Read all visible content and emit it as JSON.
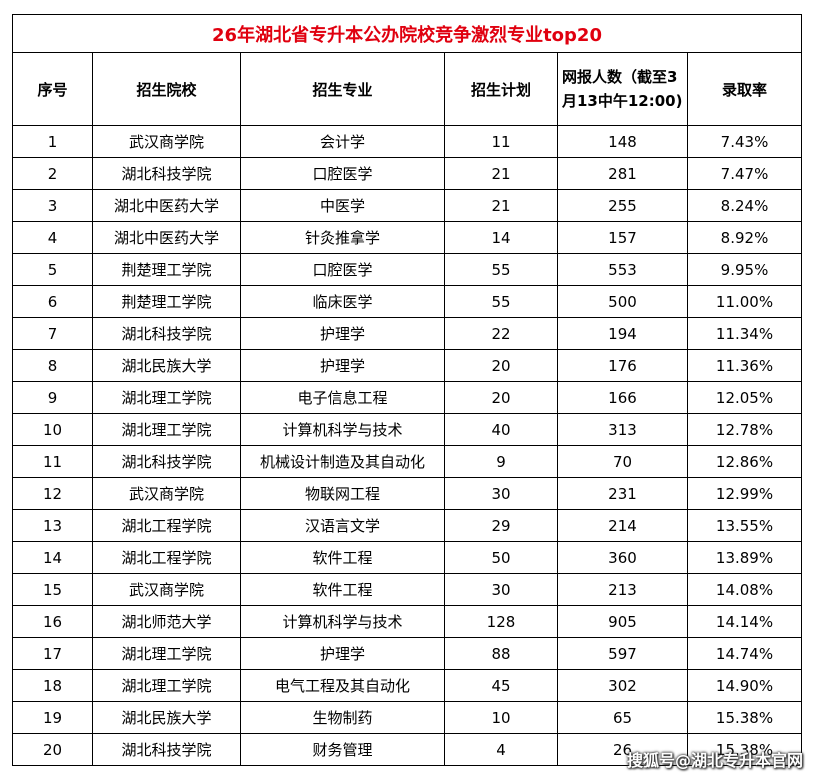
{
  "title": "26年湖北省专升本公办院校竞争激烈专业top20",
  "headers": [
    "序号",
    "招生院校",
    "招生专业",
    "招生计划",
    "网报人数（截至3月13中午12:00)",
    "录取率"
  ],
  "rows": [
    [
      "1",
      "武汉商学院",
      "会计学",
      "11",
      "148",
      "7.43%"
    ],
    [
      "2",
      "湖北科技学院",
      "口腔医学",
      "21",
      "281",
      "7.47%"
    ],
    [
      "3",
      "湖北中医药大学",
      "中医学",
      "21",
      "255",
      "8.24%"
    ],
    [
      "4",
      "湖北中医药大学",
      "针灸推拿学",
      "14",
      "157",
      "8.92%"
    ],
    [
      "5",
      "荆楚理工学院",
      "口腔医学",
      "55",
      "553",
      "9.95%"
    ],
    [
      "6",
      "荆楚理工学院",
      "临床医学",
      "55",
      "500",
      "11.00%"
    ],
    [
      "7",
      "湖北科技学院",
      "护理学",
      "22",
      "194",
      "11.34%"
    ],
    [
      "8",
      "湖北民族大学",
      "护理学",
      "20",
      "176",
      "11.36%"
    ],
    [
      "9",
      "湖北理工学院",
      "电子信息工程",
      "20",
      "166",
      "12.05%"
    ],
    [
      "10",
      "湖北理工学院",
      "计算机科学与技术",
      "40",
      "313",
      "12.78%"
    ],
    [
      "11",
      "湖北科技学院",
      "机械设计制造及其自动化",
      "9",
      "70",
      "12.86%"
    ],
    [
      "12",
      "武汉商学院",
      "物联网工程",
      "30",
      "231",
      "12.99%"
    ],
    [
      "13",
      "湖北工程学院",
      "汉语言文学",
      "29",
      "214",
      "13.55%"
    ],
    [
      "14",
      "湖北工程学院",
      "软件工程",
      "50",
      "360",
      "13.89%"
    ],
    [
      "15",
      "武汉商学院",
      "软件工程",
      "30",
      "213",
      "14.08%"
    ],
    [
      "16",
      "湖北师范大学",
      "计算机科学与技术",
      "128",
      "905",
      "14.14%"
    ],
    [
      "17",
      "湖北理工学院",
      "护理学",
      "88",
      "597",
      "14.74%"
    ],
    [
      "18",
      "湖北理工学院",
      "电气工程及其自动化",
      "45",
      "302",
      "14.90%"
    ],
    [
      "19",
      "湖北民族大学",
      "生物制药",
      "10",
      "65",
      "15.38%"
    ],
    [
      "20",
      "湖北科技学院",
      "财务管理",
      "4",
      "26",
      "15.38%"
    ]
  ],
  "watermark": "搜狐号@湖北专升本官网"
}
